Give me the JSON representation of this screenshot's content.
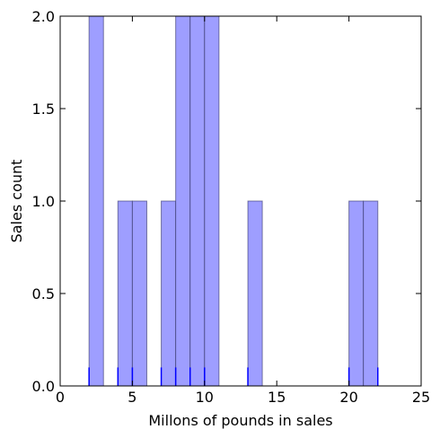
{
  "chart_data": {
    "type": "bar",
    "title": "",
    "xlabel": "Millons of pounds in sales",
    "ylabel": "Sales count",
    "xlim": [
      0,
      25
    ],
    "ylim": [
      0,
      2.0
    ],
    "x_ticks": [
      0,
      5,
      10,
      15,
      20,
      25
    ],
    "y_ticks": [
      "0.0",
      "0.5",
      "1.0",
      "1.5",
      "2.0"
    ],
    "bin_width": 1,
    "bins": [
      {
        "x0": 2,
        "x1": 3,
        "count": 2
      },
      {
        "x0": 4,
        "x1": 5,
        "count": 1
      },
      {
        "x0": 5,
        "x1": 6,
        "count": 1
      },
      {
        "x0": 7,
        "x1": 8,
        "count": 1
      },
      {
        "x0": 8,
        "x1": 9,
        "count": 2
      },
      {
        "x0": 9,
        "x1": 10,
        "count": 2
      },
      {
        "x0": 10,
        "x1": 11,
        "count": 2
      },
      {
        "x0": 13,
        "x1": 14,
        "count": 1
      },
      {
        "x0": 20,
        "x1": 21,
        "count": 1
      },
      {
        "x0": 21,
        "x1": 22,
        "count": 1
      }
    ],
    "rug": [
      2,
      4,
      5,
      7,
      8,
      9,
      10,
      13,
      20,
      22
    ],
    "rug_height": 0.1,
    "grid": false,
    "colors": {
      "bar_fill": "#9999ff",
      "bar_edge": "#333366",
      "rug": "#0000ff",
      "axes": "#000000"
    }
  }
}
